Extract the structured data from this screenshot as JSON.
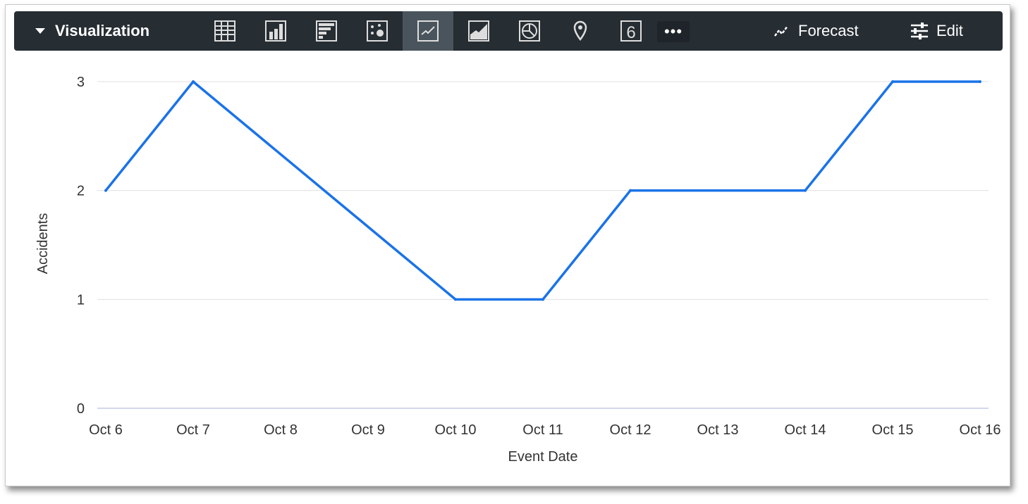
{
  "toolbar": {
    "title": "Visualization",
    "viz_types": [
      {
        "icon": "table-icon",
        "active": false
      },
      {
        "icon": "column-chart-icon",
        "active": false
      },
      {
        "icon": "bar-chart-icon",
        "active": false
      },
      {
        "icon": "scatter-chart-icon",
        "active": false
      },
      {
        "icon": "line-chart-icon",
        "active": true
      },
      {
        "icon": "area-chart-icon",
        "active": false
      },
      {
        "icon": "pie-chart-icon",
        "active": false
      },
      {
        "icon": "map-pin-icon",
        "active": false
      },
      {
        "icon": "single-value-icon",
        "active": false
      }
    ],
    "single_value_glyph": "6",
    "more_label": "•••",
    "forecast_label": "Forecast",
    "edit_label": "Edit"
  },
  "chart_data": {
    "type": "line",
    "categories": [
      "Oct 6",
      "Oct 7",
      "Oct 8",
      "Oct 9",
      "Oct 10",
      "Oct 11",
      "Oct 12",
      "Oct 13",
      "Oct 14",
      "Oct 15",
      "Oct 16"
    ],
    "x": [
      "Oct 6",
      "Oct 7",
      "Oct 10",
      "Oct 11",
      "Oct 12",
      "Oct 14",
      "Oct 15",
      "Oct 16"
    ],
    "values": [
      2,
      3,
      1,
      1,
      2,
      2,
      3,
      3
    ],
    "xlabel": "Event Date",
    "ylabel": "Accidents",
    "ylim": [
      0,
      3
    ],
    "yticks": [
      0,
      1,
      2,
      3
    ],
    "grid": true,
    "line_color": "#1a73e8"
  }
}
